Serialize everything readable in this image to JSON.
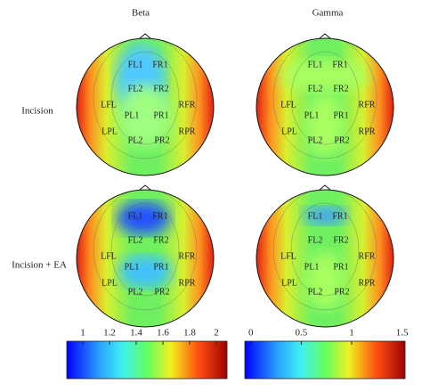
{
  "columns": [
    "Beta",
    "Gamma"
  ],
  "rows": [
    "Incision",
    "Incision + EA"
  ],
  "maps": [
    {
      "labels": [
        "FL1",
        "FR1",
        "FL2",
        "FR2",
        "LFL",
        "RFR",
        "PL1",
        "PR1",
        "LPL",
        "RPR",
        "PL2",
        "PR2"
      ]
    },
    {
      "labels": [
        "FL1",
        "FR1",
        "FL2",
        "FR2",
        "LFL",
        "RFR",
        "PL1",
        "PR1",
        "LPL",
        "RPR",
        "PL2",
        "PR2"
      ]
    },
    {
      "labels": [
        "FL1",
        "FR1",
        "FL2",
        "FR2",
        "LFL",
        "RFR",
        "PL1",
        "PR1",
        "LPL",
        "RPR",
        "PL2",
        "PR2"
      ]
    },
    {
      "labels": [
        "FL1",
        "FR1",
        "FL2",
        "FR2",
        "LFL",
        "RFR",
        "PL1",
        "PR1",
        "LPL",
        "RPR",
        "PL2",
        "PR2"
      ]
    }
  ],
  "colorbars": [
    {
      "lim": [
        0.88,
        2.08
      ],
      "ticks": [
        1,
        1.2,
        1.4,
        1.6,
        1.8,
        2
      ]
    },
    {
      "lim": [
        -0.06,
        1.53
      ],
      "ticks": [
        0,
        0.5,
        1,
        1.5
      ]
    }
  ]
}
